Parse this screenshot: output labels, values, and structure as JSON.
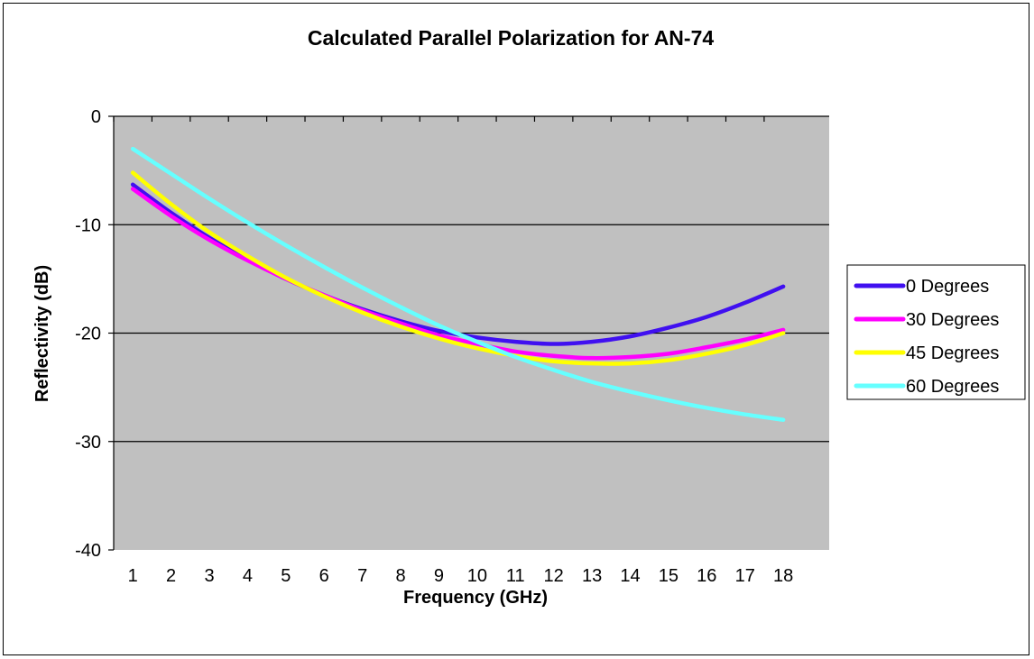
{
  "chart_data": {
    "type": "line",
    "title": "Calculated Parallel Polarization for AN-74",
    "xlabel": "Frequency (GHz)",
    "ylabel": "Reflectivity (dB)",
    "x": [
      1,
      2,
      3,
      4,
      5,
      6,
      7,
      8,
      9,
      10,
      11,
      12,
      13,
      14,
      15,
      16,
      17,
      18
    ],
    "xlim": [
      1,
      18
    ],
    "ylim": [
      -40,
      0
    ],
    "yticks": [
      0,
      -10,
      -20,
      -30,
      -40
    ],
    "grid": "horizontal",
    "plot_background": "#c0c0c0",
    "legend_position": "right",
    "series": [
      {
        "name": "0 Degrees",
        "color": "#4010f0",
        "values": [
          -6.3,
          -8.9,
          -11.2,
          -13.2,
          -15.0,
          -16.5,
          -17.8,
          -18.9,
          -19.8,
          -20.4,
          -20.8,
          -21.0,
          -20.8,
          -20.3,
          -19.5,
          -18.5,
          -17.2,
          -15.7
        ]
      },
      {
        "name": "30 Degrees",
        "color": "#ff00ff",
        "values": [
          -6.7,
          -9.2,
          -11.4,
          -13.3,
          -15.0,
          -16.5,
          -17.9,
          -19.1,
          -20.2,
          -21.0,
          -21.7,
          -22.1,
          -22.3,
          -22.2,
          -21.9,
          -21.3,
          -20.6,
          -19.7
        ]
      },
      {
        "name": "45 Degrees",
        "color": "#ffff00",
        "values": [
          -5.2,
          -8.1,
          -10.7,
          -12.9,
          -14.9,
          -16.6,
          -18.1,
          -19.4,
          -20.5,
          -21.4,
          -22.1,
          -22.6,
          -22.8,
          -22.8,
          -22.5,
          -21.9,
          -21.1,
          -20.0
        ]
      },
      {
        "name": "60 Degrees",
        "color": "#66ffff",
        "values": [
          -3.0,
          -5.3,
          -7.6,
          -9.8,
          -11.9,
          -13.9,
          -15.8,
          -17.6,
          -19.3,
          -20.8,
          -22.2,
          -23.4,
          -24.5,
          -25.4,
          -26.2,
          -26.9,
          -27.5,
          -28.0
        ]
      }
    ]
  }
}
